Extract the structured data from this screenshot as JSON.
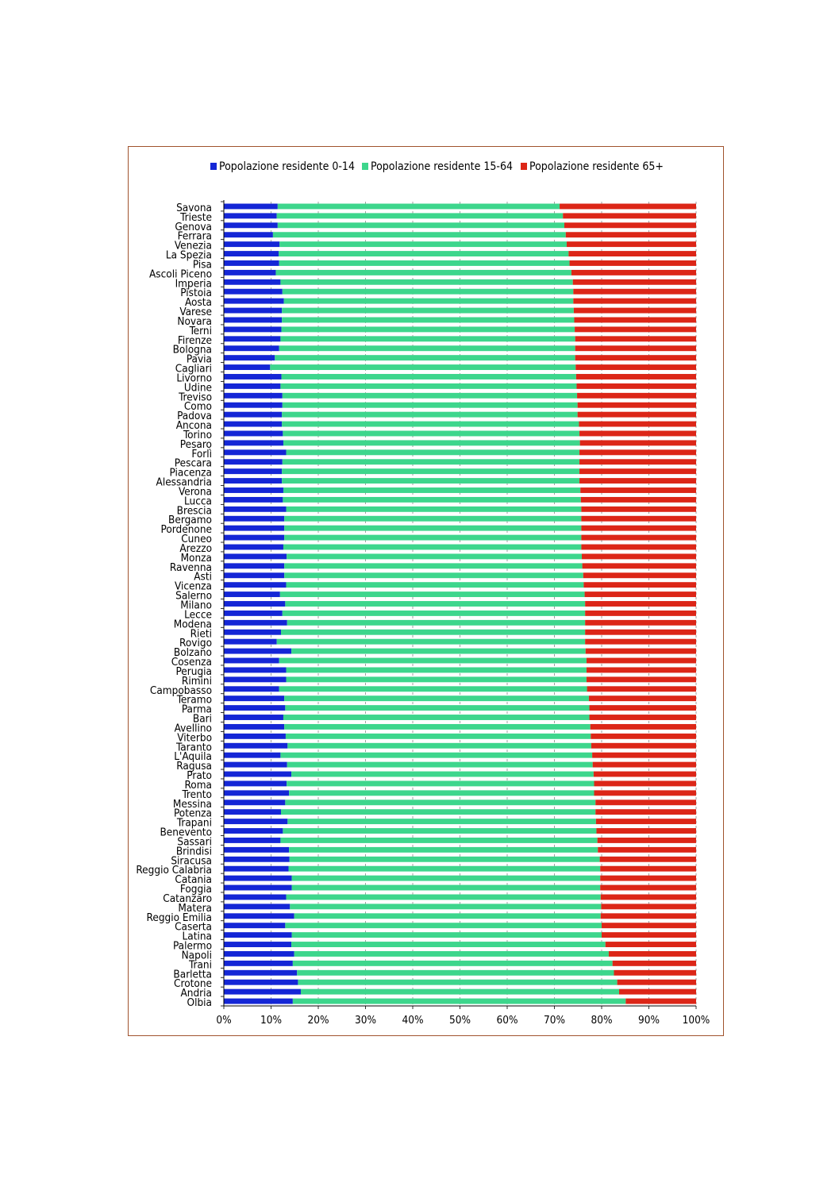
{
  "chart_data": {
    "type": "bar",
    "orientation": "horizontal",
    "stacked": true,
    "percent": true,
    "xlim": [
      0,
      100
    ],
    "x_ticks": [
      "0%",
      "10%",
      "20%",
      "30%",
      "40%",
      "50%",
      "60%",
      "70%",
      "80%",
      "90%",
      "100%"
    ],
    "grid": "vertical dashed",
    "legend_position": "top",
    "categories": [
      "Savona",
      "Trieste",
      "Genova",
      "Ferrara",
      "Venezia",
      "La Spezia",
      "Pisa",
      "Ascoli Piceno",
      "Imperia",
      "Pistoia",
      "Aosta",
      "Varese",
      "Novara",
      "Terni",
      "Firenze",
      "Bologna",
      "Pavia",
      "Cagliari",
      "Livorno",
      "Udine",
      "Treviso",
      "Como",
      "Padova",
      "Ancona",
      "Torino",
      "Pesaro",
      "Forlì",
      "Pescara",
      "Piacenza",
      "Alessandria",
      "Verona",
      "Lucca",
      "Brescia",
      "Bergamo",
      "Pordenone",
      "Cuneo",
      "Arezzo",
      "Monza",
      "Ravenna",
      "Asti",
      "Vicenza",
      "Salerno",
      "Milano",
      "Lecce",
      "Modena",
      "Rieti",
      "Rovigo",
      "Bolzano",
      "Cosenza",
      "Perugia",
      "Rimini",
      "Campobasso",
      "Teramo",
      "Parma",
      "Bari",
      "Avellino",
      "Viterbo",
      "Taranto",
      "L'Aquila",
      "Ragusa",
      "Prato",
      "Roma",
      "Trento",
      "Messina",
      "Potenza",
      "Trapani",
      "Benevento",
      "Sassari",
      "Brindisi",
      "Siracusa",
      "Reggio Calabria",
      "Catania",
      "Foggia",
      "Catanzaro",
      "Matera",
      "Reggio Emilia",
      "Caserta",
      "Latina",
      "Palermo",
      "Napoli",
      "Trani",
      "Barletta",
      "Crotone",
      "Andria",
      "Olbia"
    ],
    "series": [
      {
        "name": "Popolazione residente 0-14",
        "color": "#1426d6",
        "values": [
          11.4,
          11.2,
          11.4,
          10.4,
          11.8,
          11.6,
          11.7,
          11.0,
          12.0,
          12.4,
          12.7,
          12.3,
          12.3,
          12.2,
          12.0,
          11.7,
          10.8,
          9.8,
          12.2,
          12.0,
          12.4,
          12.4,
          12.3,
          12.3,
          12.5,
          12.6,
          13.2,
          12.4,
          12.3,
          12.3,
          12.6,
          12.5,
          13.2,
          12.8,
          12.8,
          12.8,
          12.6,
          13.3,
          12.8,
          12.8,
          13.2,
          11.9,
          13.0,
          12.4,
          13.4,
          12.1,
          11.2,
          14.3,
          11.7,
          13.2,
          13.2,
          11.7,
          12.8,
          13.0,
          12.6,
          12.8,
          13.1,
          13.5,
          12.0,
          13.4,
          14.3,
          13.3,
          13.8,
          13.0,
          12.1,
          13.5,
          12.5,
          12.0,
          13.8,
          13.9,
          13.7,
          14.4,
          14.4,
          13.2,
          14.0,
          14.9,
          13.0,
          14.4,
          14.3,
          14.9,
          14.6,
          15.5,
          15.7,
          16.3,
          14.6
        ]
      },
      {
        "name": "Popolazione residente 15-64",
        "color": "#3dd68c",
        "values": [
          59.7,
          60.6,
          60.7,
          62.0,
          60.8,
          61.4,
          61.5,
          62.6,
          61.9,
          61.6,
          61.3,
          61.8,
          61.9,
          62.1,
          62.4,
          62.7,
          63.6,
          64.7,
          62.4,
          62.7,
          62.4,
          62.5,
          62.6,
          62.9,
          62.8,
          62.8,
          62.1,
          62.9,
          63.0,
          63.0,
          62.9,
          63.1,
          62.5,
          62.9,
          62.9,
          62.9,
          63.1,
          62.5,
          63.1,
          63.3,
          63.0,
          64.5,
          63.5,
          64.1,
          63.1,
          64.4,
          65.3,
          62.3,
          65.1,
          63.6,
          63.6,
          65.2,
          64.5,
          64.4,
          64.8,
          64.8,
          64.6,
          64.3,
          66.0,
          64.7,
          64.0,
          65.1,
          64.6,
          65.7,
          66.6,
          65.3,
          66.4,
          67.1,
          65.4,
          65.7,
          66.0,
          65.3,
          65.3,
          66.6,
          65.9,
          64.9,
          67.0,
          65.6,
          66.5,
          66.6,
          67.7,
          67.1,
          67.6,
          67.4,
          70.5
        ]
      },
      {
        "name": "Popolazione residente 65+",
        "color": "#dc2617",
        "values": [
          28.9,
          28.2,
          27.9,
          27.6,
          27.4,
          27.0,
          26.8,
          26.4,
          26.1,
          26.0,
          26.0,
          25.9,
          25.8,
          25.7,
          25.6,
          25.6,
          25.6,
          25.5,
          25.4,
          25.3,
          25.2,
          25.1,
          25.1,
          24.8,
          24.7,
          24.6,
          24.7,
          24.7,
          24.7,
          24.7,
          24.5,
          24.4,
          24.3,
          24.3,
          24.3,
          24.3,
          24.3,
          24.2,
          24.1,
          23.9,
          23.8,
          23.6,
          23.5,
          23.5,
          23.5,
          23.5,
          23.5,
          23.4,
          23.2,
          23.2,
          23.2,
          23.1,
          22.7,
          22.6,
          22.6,
          22.4,
          22.3,
          22.2,
          22.0,
          21.9,
          21.7,
          21.6,
          21.6,
          21.3,
          21.3,
          21.2,
          21.1,
          20.9,
          20.8,
          20.4,
          20.3,
          20.3,
          20.3,
          20.2,
          20.1,
          20.2,
          20.0,
          20.0,
          19.2,
          18.5,
          17.7,
          17.4,
          16.7,
          16.3,
          14.9
        ]
      }
    ]
  }
}
